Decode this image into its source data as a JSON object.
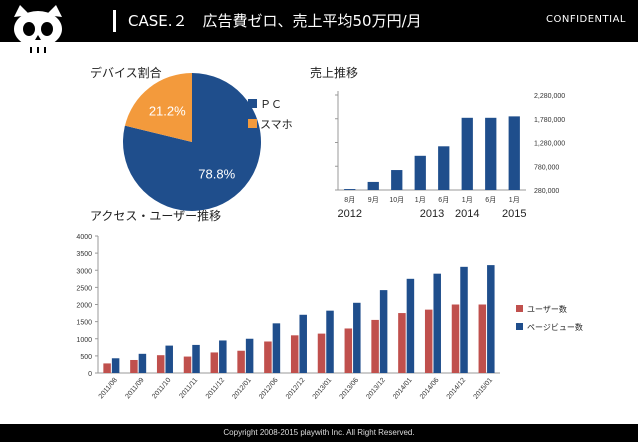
{
  "header": {
    "title": "CASE.２　広告費ゼロ、売上平均50万円/月",
    "confidential": "CONFIDENTIAL"
  },
  "footer": {
    "copyright": "Copyright 2008-2015 playwith Inc. All Right Reserved."
  },
  "colors": {
    "navy": "#1f4e8c",
    "orange": "#f39a3c",
    "red": "#c0504d",
    "blue": "#1f4e8c"
  },
  "chart_data": [
    {
      "type": "pie",
      "title": "デバイス割合",
      "slices": [
        {
          "name": "ＰＣ",
          "value": 78.8,
          "label": "78.8%"
        },
        {
          "name": "スマホ",
          "value": 21.2,
          "label": "21.2%"
        }
      ],
      "legend_position": "right"
    },
    {
      "type": "bar",
      "title": "売上推移",
      "categories": [
        "8月",
        "9月",
        "10月",
        "1月",
        "6月",
        "1月",
        "6月",
        "1月"
      ],
      "year_labels": [
        {
          "text": "2012",
          "under": 0
        },
        {
          "text": "2013",
          "under": 3.5
        },
        {
          "text": "2014",
          "under": 5
        },
        {
          "text": "2015",
          "under": 7
        }
      ],
      "values": [
        300000,
        450000,
        700000,
        1000000,
        1200000,
        1800000,
        1800000,
        1830000
      ],
      "y_ticks": [
        280000,
        780000,
        1280000,
        1780000,
        2280000
      ],
      "y_tick_labels": [
        "280,000",
        "780,000",
        "1,280,000",
        "1,780,000",
        "2,280,000"
      ],
      "ylim": [
        280000,
        2280000
      ],
      "y_axis_side": "right",
      "grid": false
    },
    {
      "type": "bar",
      "title": "アクセス・ユーザー推移",
      "categories": [
        "2011/08",
        "2011/09",
        "2011/10",
        "2011/11",
        "2011/12",
        "2012/01",
        "2012/06",
        "2012/12",
        "2013/01",
        "2013/06",
        "2013/12",
        "2014/01",
        "2014/06",
        "2014/12",
        "2015/01"
      ],
      "series": [
        {
          "name": "ユーザー数",
          "values": [
            280,
            380,
            520,
            480,
            600,
            650,
            920,
            1100,
            1150,
            1300,
            1550,
            1750,
            1850,
            2000,
            2000
          ]
        },
        {
          "name": "ページビュー数",
          "values": [
            430,
            560,
            800,
            820,
            950,
            1000,
            1450,
            1700,
            1820,
            2050,
            2420,
            2750,
            2900,
            3100,
            3150
          ]
        }
      ],
      "ylim": [
        0,
        4000
      ],
      "y_ticks": [
        0,
        500,
        1000,
        1500,
        2000,
        2500,
        3000,
        3500,
        4000
      ],
      "legend_position": "right",
      "grid": false
    }
  ]
}
